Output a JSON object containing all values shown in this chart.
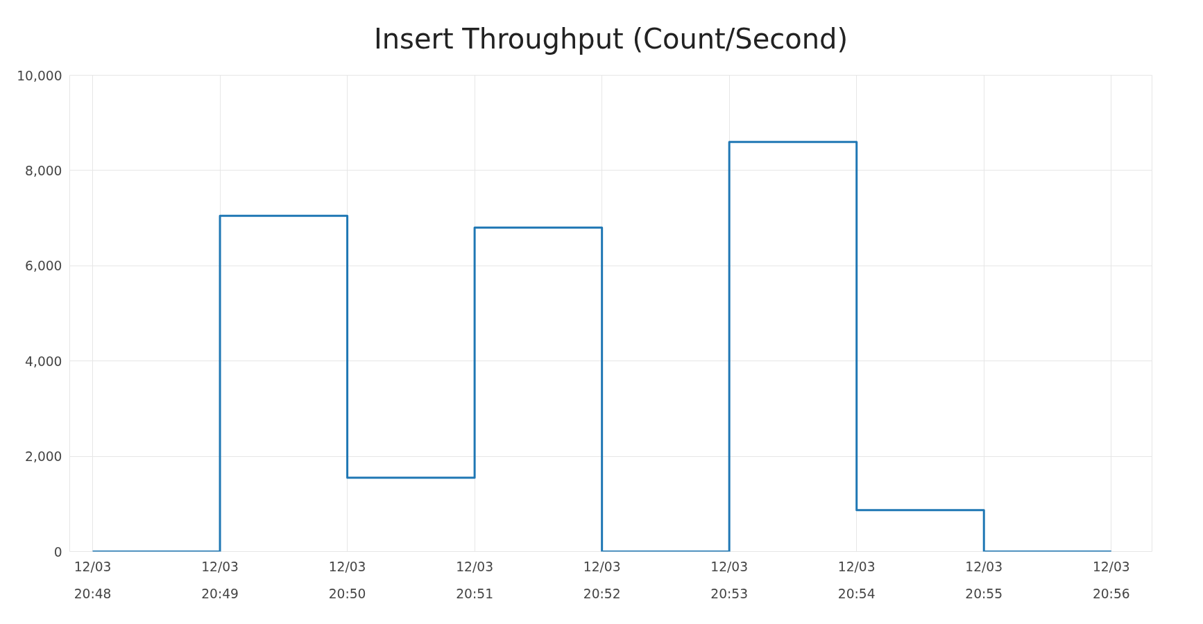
{
  "chart_data": {
    "type": "step",
    "title": "Insert Throughput (Count/Second)",
    "categories": [
      "12/03\n20:48",
      "12/03\n20:49",
      "12/03\n20:50",
      "12/03\n20:51",
      "12/03\n20:52",
      "12/03\n20:53",
      "12/03\n20:54",
      "12/03\n20:55",
      "12/03\n20:56"
    ],
    "series": [
      {
        "color": "#1f77b4",
        "values": [
          0,
          7050,
          1550,
          6800,
          0,
          8600,
          870,
          0,
          0
        ]
      }
    ],
    "ylim": [
      0,
      10000
    ],
    "yticks": [
      {
        "value": 0,
        "label": "0"
      },
      {
        "value": 2000,
        "label": "2,000"
      },
      {
        "value": 4000,
        "label": "4,000"
      },
      {
        "value": 6000,
        "label": "6,000"
      },
      {
        "value": 8000,
        "label": "8,000"
      },
      {
        "value": 10000,
        "label": "10,000"
      }
    ],
    "grid": true,
    "marker": "none",
    "line_style": "solid"
  }
}
